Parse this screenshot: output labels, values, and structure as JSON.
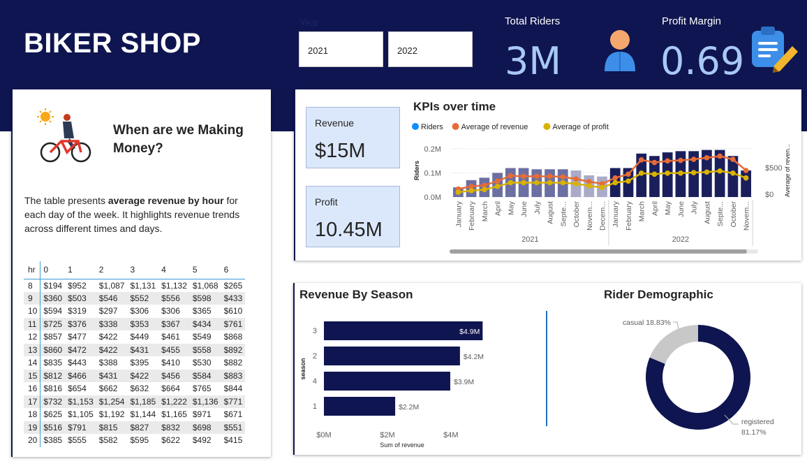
{
  "header": {
    "title": "BIKER SHOP",
    "year_label": "Year",
    "year_options": [
      "2021",
      "2022"
    ],
    "total_riders_label": "Total Riders",
    "total_riders_value": "3M",
    "profit_margin_label": "Profit Margin",
    "profit_margin_value": "0.69",
    "colors": {
      "band": "#0f1550",
      "value": "#a8c8f5"
    }
  },
  "hero": {
    "heading": "When are we Making Money?",
    "text_prefix": "The table presents ",
    "text_bold": "average revenue by hour",
    "text_suffix": " for each day of the week. It highlights revenue trends across different times and days."
  },
  "hour_table": {
    "headers": [
      "hr",
      "0",
      "1",
      "2",
      "3",
      "4",
      "5",
      "6"
    ],
    "rows": [
      [
        "8",
        "$194",
        "$952",
        "$1,087",
        "$1,131",
        "$1,132",
        "$1,068",
        "$265"
      ],
      [
        "9",
        "$360",
        "$503",
        "$546",
        "$552",
        "$556",
        "$598",
        "$433"
      ],
      [
        "10",
        "$594",
        "$319",
        "$297",
        "$306",
        "$306",
        "$365",
        "$610"
      ],
      [
        "11",
        "$725",
        "$376",
        "$338",
        "$353",
        "$367",
        "$434",
        "$761"
      ],
      [
        "12",
        "$857",
        "$477",
        "$422",
        "$449",
        "$461",
        "$549",
        "$868"
      ],
      [
        "13",
        "$860",
        "$472",
        "$422",
        "$431",
        "$455",
        "$558",
        "$892"
      ],
      [
        "14",
        "$835",
        "$443",
        "$388",
        "$395",
        "$410",
        "$530",
        "$882"
      ],
      [
        "15",
        "$812",
        "$466",
        "$431",
        "$422",
        "$456",
        "$584",
        "$883"
      ],
      [
        "16",
        "$816",
        "$654",
        "$662",
        "$632",
        "$664",
        "$765",
        "$844"
      ],
      [
        "17",
        "$732",
        "$1,153",
        "$1,254",
        "$1,185",
        "$1,222",
        "$1,136",
        "$771"
      ],
      [
        "18",
        "$625",
        "$1,105",
        "$1,192",
        "$1,144",
        "$1,165",
        "$971",
        "$671"
      ],
      [
        "19",
        "$516",
        "$791",
        "$815",
        "$827",
        "$832",
        "$698",
        "$551"
      ],
      [
        "20",
        "$385",
        "$555",
        "$582",
        "$595",
        "$622",
        "$492",
        "$415"
      ]
    ]
  },
  "cards": {
    "revenue_label": "Revenue",
    "revenue_value": "$15M",
    "profit_label": "Profit",
    "profit_value": "10.45M"
  },
  "chart_data": [
    {
      "type": "bar",
      "title": "KPIs over time",
      "legend": [
        "Riders",
        "Average of revenue",
        "Average of profit"
      ],
      "legend_colors": [
        "#118dff",
        "#e66c37",
        "#d9b300"
      ],
      "ylabel": "Riders",
      "y2label": "Average of reven...",
      "y_ticks": [
        "0.0M",
        "0.1M",
        "0.2M"
      ],
      "y2_ticks": [
        "$0",
        "$500"
      ],
      "ylim": [
        0,
        0.22
      ],
      "y2lim": [
        -50,
        950
      ],
      "categories": [
        "January",
        "February",
        "March",
        "April",
        "May",
        "June",
        "July",
        "August",
        "Septe...",
        "October",
        "Novem...",
        "Decem...",
        "January",
        "February",
        "March",
        "April",
        "May",
        "June",
        "July",
        "August",
        "Septe...",
        "October",
        "Novem..."
      ],
      "years": [
        "2021",
        "2022"
      ],
      "year_spans": [
        12,
        11
      ],
      "series": [
        {
          "name": "Riders",
          "values": [
            0.04,
            0.07,
            0.08,
            0.1,
            0.12,
            0.12,
            0.115,
            0.115,
            0.115,
            0.11,
            0.09,
            0.085,
            0.12,
            0.12,
            0.18,
            0.17,
            0.185,
            0.19,
            0.19,
            0.195,
            0.195,
            0.17,
            0.11
          ]
        },
        {
          "name": "Average of revenue",
          "values": [
            100,
            150,
            170,
            250,
            350,
            340,
            340,
            340,
            330,
            290,
            240,
            200,
            310,
            380,
            650,
            600,
            630,
            640,
            660,
            690,
            720,
            660,
            450
          ]
        },
        {
          "name": "Average of profit",
          "values": [
            40,
            70,
            90,
            150,
            220,
            220,
            220,
            220,
            220,
            200,
            160,
            130,
            220,
            250,
            400,
            380,
            400,
            400,
            410,
            420,
            440,
            400,
            310
          ]
        }
      ],
      "bar_colors": {
        "2021": "#6b6fa3",
        "2021_light": "#a9abc8",
        "2022": "#1a1f5c"
      }
    },
    {
      "type": "bar",
      "title": "Revenue By Season",
      "xlabel": "Sum of revenue",
      "ylabel": "season",
      "categories": [
        "3",
        "2",
        "4",
        "1"
      ],
      "values": [
        4.9,
        4.2,
        3.9,
        2.2
      ],
      "value_labels": [
        "$4.9M",
        "$4.2M",
        "$3.9M",
        "$2.2M"
      ],
      "x_ticks": [
        "$0M",
        "$2M",
        "$4M"
      ],
      "xlim": [
        0,
        5
      ],
      "bar_color": "#0f1550"
    },
    {
      "type": "pie",
      "title": "Rider Demographic",
      "slices": [
        {
          "name": "registered",
          "value": 81.17,
          "label": "registered",
          "pct": "81.17%",
          "color": "#0f1550"
        },
        {
          "name": "casual",
          "value": 18.83,
          "label": "casual",
          "pct": "18.83%",
          "color": "#c8c8c8"
        }
      ]
    }
  ]
}
